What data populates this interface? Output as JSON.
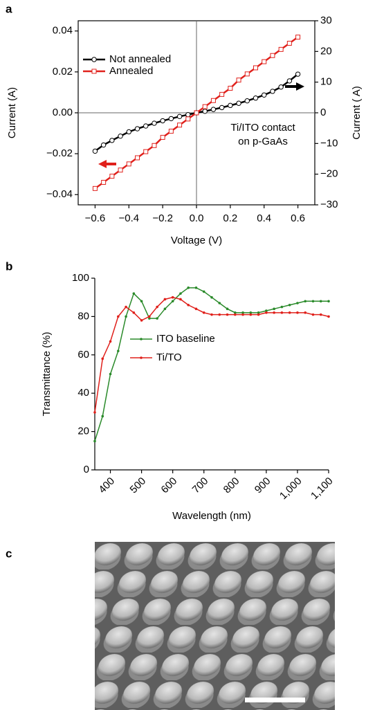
{
  "chart_data": [
    {
      "type": "line",
      "panel_label": "a",
      "x_label": "Voltage (V)",
      "y_label": "Current (A)",
      "y2_label": "Current ( A)",
      "annotations": [
        "Ti/ITO contact",
        "on p-GaAs"
      ],
      "xlim": [
        -0.7,
        0.7
      ],
      "xticks": [
        {
          "value": -0.6,
          "label": "−0.6"
        },
        {
          "value": -0.4,
          "label": "−0.4"
        },
        {
          "value": -0.2,
          "label": "−0.2"
        },
        {
          "value": 0,
          "label": "0.0"
        },
        {
          "value": 0.2,
          "label": "0.2"
        },
        {
          "value": 0.4,
          "label": "0.4"
        },
        {
          "value": 0.6,
          "label": "0.6"
        }
      ],
      "ylim": [
        -0.045,
        0.045
      ],
      "yticks": [
        {
          "value": -0.04,
          "label": "−0.04"
        },
        {
          "value": -0.02,
          "label": "−0.02"
        },
        {
          "value": 0,
          "label": "0.00"
        },
        {
          "value": 0.02,
          "label": "0.02"
        },
        {
          "value": 0.04,
          "label": "0.04"
        }
      ],
      "y2lim": [
        -30,
        30
      ],
      "y2ticks": [
        {
          "value": -30,
          "label": "−30"
        },
        {
          "value": -20,
          "label": "−20"
        },
        {
          "value": -10,
          "label": "−10"
        },
        0,
        10,
        20,
        30
      ],
      "zero_lines": true,
      "x": [
        -0.6,
        -0.55,
        -0.5,
        -0.45,
        -0.4,
        -0.35,
        -0.3,
        -0.25,
        -0.2,
        -0.15,
        -0.1,
        -0.05,
        0,
        0.05,
        0.1,
        0.15,
        0.2,
        0.25,
        0.3,
        0.35,
        0.4,
        0.45,
        0.5,
        0.55,
        0.6
      ],
      "series": [
        {
          "name": "Not annealed",
          "color": "#000000",
          "marker": "circle",
          "axis": "y2",
          "values": [
            -12.5,
            -10.5,
            -9,
            -7.6,
            -6.2,
            -5.2,
            -4.3,
            -3.4,
            -2.6,
            -1.9,
            -1.2,
            -0.6,
            0,
            0.5,
            1.1,
            1.7,
            2.4,
            3.1,
            3.9,
            4.8,
            5.8,
            7.0,
            8.4,
            10.4,
            12.6
          ]
        },
        {
          "name": "Annealed",
          "color": "#e0201b",
          "marker": "square",
          "values": [
            -0.037,
            -0.034,
            -0.031,
            -0.028,
            -0.025,
            -0.022,
            -0.019,
            -0.016,
            -0.012,
            -0.009,
            -0.006,
            -0.003,
            0,
            0.003,
            0.006,
            0.009,
            0.012,
            0.016,
            0.019,
            0.022,
            0.025,
            0.028,
            0.031,
            0.034,
            0.037
          ]
        }
      ]
    },
    {
      "type": "line",
      "panel_label": "b",
      "x_label": "Wavelength (nm)",
      "y_label": "Transmittance (%)",
      "xlim": [
        350,
        1100
      ],
      "xticks": [
        400,
        500,
        600,
        700,
        800,
        900,
        {
          "value": 1000,
          "label": "1,000"
        },
        {
          "value": 1100,
          "label": "1,100"
        }
      ],
      "ylim": [
        0,
        100
      ],
      "yticks": [
        0,
        20,
        40,
        60,
        80,
        100
      ],
      "x": [
        350,
        375,
        400,
        425,
        450,
        475,
        500,
        525,
        550,
        575,
        600,
        625,
        650,
        675,
        700,
        725,
        750,
        775,
        800,
        825,
        850,
        875,
        900,
        925,
        950,
        975,
        1000,
        1025,
        1050,
        1075,
        1100
      ],
      "series": [
        {
          "name": "ITO baseline",
          "color": "#2a8a2a",
          "marker": "dot",
          "values": [
            15,
            28,
            50,
            62,
            80,
            92,
            88,
            79,
            79,
            84,
            88,
            92,
            95,
            95,
            93,
            90,
            87,
            84,
            82,
            82,
            82,
            82,
            83,
            84,
            85,
            86,
            87,
            88,
            88,
            88,
            88
          ]
        },
        {
          "name": "Ti/TO",
          "color": "#e0201b",
          "marker": "dot",
          "values": [
            30,
            58,
            67,
            80,
            85,
            82,
            78,
            80,
            85,
            89,
            90,
            89,
            86,
            84,
            82,
            81,
            81,
            81,
            81,
            81,
            81,
            81,
            82,
            82,
            82,
            82,
            82,
            82,
            81,
            81,
            80
          ]
        }
      ]
    }
  ],
  "image_panel": {
    "label": "c"
  }
}
